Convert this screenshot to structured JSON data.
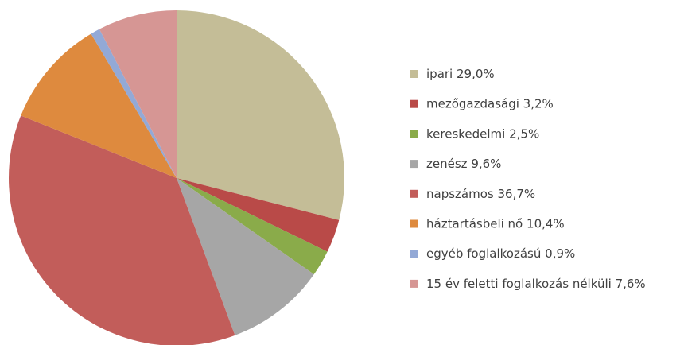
{
  "chart_data": {
    "type": "pie",
    "categories": [
      "ipari",
      "mezőgazdasági",
      "kereskedelmi",
      "zenész",
      "napszámos",
      "háztartásbeli nő",
      "egyéb foglalkozású",
      "15 év feletti foglalkozás nélküli"
    ],
    "values": [
      29.0,
      3.2,
      2.5,
      9.6,
      36.7,
      10.4,
      0.9,
      7.6
    ],
    "value_labels": [
      "29,0%",
      "3,2%",
      "2,5%",
      "9,6%",
      "36,7%",
      "10,4%",
      "0,9%",
      "7,6%"
    ],
    "colors": [
      "#c4bd97",
      "#b94a48",
      "#8aab4a",
      "#a6a6a6",
      "#c25d5a",
      "#de8a3e",
      "#93a9d6",
      "#d69694"
    ],
    "legend": "right"
  }
}
